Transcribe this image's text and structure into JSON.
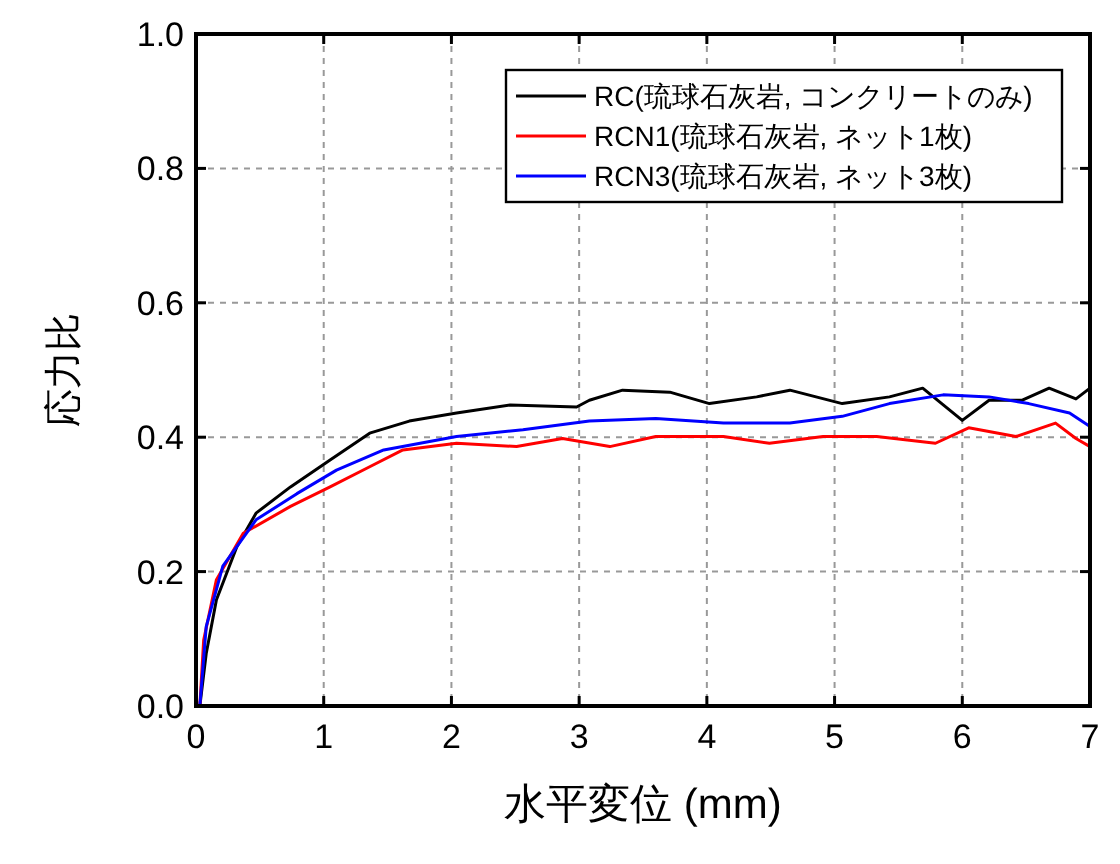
{
  "chart_data": {
    "type": "line",
    "xlabel": "水平変位 (mm)",
    "ylabel": "応力比",
    "xlim": [
      0,
      7
    ],
    "ylim": [
      0,
      1.0
    ],
    "xticks": [
      0,
      1,
      2,
      3,
      4,
      5,
      6,
      7
    ],
    "yticks": [
      {
        "value": 0,
        "label": "0.0"
      },
      {
        "value": 0.2,
        "label": "0.2"
      },
      {
        "value": 0.4,
        "label": "0.4"
      },
      {
        "value": 0.6,
        "label": "0.6"
      },
      {
        "value": 0.8,
        "label": "0.8"
      },
      {
        "value": 1.0,
        "label": "1.0"
      }
    ],
    "grid": true,
    "legend": "top right",
    "line_style": "solid",
    "marker": "none",
    "series": [
      {
        "name": "RC(琉球石灰岩, コンクリートのみ)",
        "color": "#000000",
        "x": [
          0.03,
          0.08,
          0.16,
          0.32,
          0.47,
          0.74,
          1.05,
          1.36,
          1.67,
          2.04,
          2.46,
          2.98,
          3.08,
          3.34,
          3.71,
          4.02,
          4.39,
          4.65,
          5.06,
          5.43,
          5.69,
          6.0,
          6.21,
          6.47,
          6.68,
          6.89,
          7.0
        ],
        "values": [
          0.0,
          0.078,
          0.158,
          0.237,
          0.287,
          0.326,
          0.366,
          0.406,
          0.424,
          0.436,
          0.448,
          0.445,
          0.455,
          0.47,
          0.467,
          0.45,
          0.46,
          0.47,
          0.45,
          0.46,
          0.473,
          0.425,
          0.455,
          0.455,
          0.473,
          0.457,
          0.473
        ]
      },
      {
        "name": "RCN1(琉球石灰岩, ネット1枚)",
        "color": "#ff0000",
        "x": [
          0.03,
          0.06,
          0.16,
          0.37,
          0.74,
          1.05,
          1.36,
          1.62,
          2.04,
          2.51,
          2.87,
          3.24,
          3.6,
          4.13,
          4.49,
          4.91,
          5.33,
          5.79,
          6.05,
          6.42,
          6.73,
          6.89,
          7.0
        ],
        "values": [
          0.0,
          0.098,
          0.188,
          0.257,
          0.297,
          0.326,
          0.356,
          0.381,
          0.391,
          0.386,
          0.398,
          0.386,
          0.401,
          0.401,
          0.391,
          0.401,
          0.401,
          0.391,
          0.414,
          0.401,
          0.421,
          0.398,
          0.386
        ]
      },
      {
        "name": "RCN3(琉球石灰岩, ネット3枚)",
        "color": "#0000ff",
        "x": [
          0.03,
          0.08,
          0.21,
          0.47,
          0.79,
          1.1,
          1.47,
          2.04,
          2.56,
          3.08,
          3.6,
          4.13,
          4.65,
          5.06,
          5.43,
          5.85,
          6.21,
          6.52,
          6.84,
          7.0
        ],
        "values": [
          0.0,
          0.118,
          0.208,
          0.277,
          0.316,
          0.351,
          0.381,
          0.401,
          0.411,
          0.424,
          0.428,
          0.421,
          0.421,
          0.431,
          0.45,
          0.463,
          0.46,
          0.45,
          0.436,
          0.416
        ]
      }
    ]
  }
}
